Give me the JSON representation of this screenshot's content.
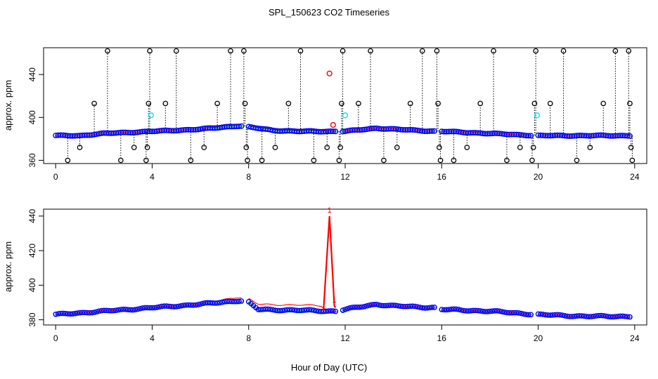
{
  "title": "SPL_150623  CO2 Timeseries",
  "xlabel": "Hour of Day (UTC)",
  "colors": {
    "red": "#ff0000",
    "blue": "#0000ff",
    "green": "#00cc00",
    "cyan": "#00e5ee",
    "black": "#000000"
  },
  "chart_data": [
    {
      "type": "scatter",
      "ylabel": "approx. ppm",
      "xlim": [
        -0.5,
        24.5
      ],
      "ylim": [
        357,
        465
      ],
      "xticks": [
        0,
        4,
        8,
        12,
        16,
        20,
        24
      ],
      "yticks": [
        360,
        400,
        440
      ],
      "tick_labels_x": [
        "0",
        "4",
        "8",
        "12",
        "16",
        "20",
        "24"
      ],
      "tick_labels_y": [
        "360",
        "400",
        "440"
      ],
      "baseline_knots": [
        [
          0,
          383
        ],
        [
          1,
          383
        ],
        [
          2,
          385
        ],
        [
          4,
          387
        ],
        [
          6,
          389
        ],
        [
          7.5,
          392
        ],
        [
          7.8,
          392
        ],
        [
          8,
          391
        ],
        [
          9,
          388
        ],
        [
          10,
          387
        ],
        [
          11.6,
          387
        ],
        [
          12,
          387
        ],
        [
          13.3,
          390
        ],
        [
          14,
          389
        ],
        [
          15.8,
          387
        ],
        [
          16,
          387
        ],
        [
          18,
          385
        ],
        [
          20,
          383
        ],
        [
          22,
          383
        ],
        [
          23.8,
          383
        ]
      ],
      "series_red_offset_knots": [
        [
          6,
          0
        ],
        [
          7.5,
          2
        ],
        [
          8,
          1
        ],
        [
          10,
          1
        ],
        [
          11,
          1
        ],
        [
          11.5,
          0
        ]
      ],
      "missing_ranges": [
        [
          7.8,
          7.95
        ],
        [
          11.7,
          11.85
        ],
        [
          15.8,
          15.9
        ],
        [
          19.8,
          19.95
        ]
      ],
      "black_spikes": [
        {
          "x": 0.5,
          "y": 360
        },
        {
          "x": 1.0,
          "y": 372
        },
        {
          "x": 1.6,
          "y": 413
        },
        {
          "x": 2.15,
          "y": 462
        },
        {
          "x": 2.7,
          "y": 360
        },
        {
          "x": 3.25,
          "y": 372
        },
        {
          "x": 3.75,
          "y": 360
        },
        {
          "x": 3.8,
          "y": 372
        },
        {
          "x": 3.85,
          "y": 413
        },
        {
          "x": 3.9,
          "y": 462
        },
        {
          "x": 4.55,
          "y": 413
        },
        {
          "x": 5.0,
          "y": 462
        },
        {
          "x": 5.6,
          "y": 360
        },
        {
          "x": 6.15,
          "y": 372
        },
        {
          "x": 6.7,
          "y": 413
        },
        {
          "x": 7.25,
          "y": 462
        },
        {
          "x": 7.8,
          "y": 462
        },
        {
          "x": 7.85,
          "y": 413
        },
        {
          "x": 7.9,
          "y": 372
        },
        {
          "x": 7.95,
          "y": 360
        },
        {
          "x": 8.55,
          "y": 360
        },
        {
          "x": 9.1,
          "y": 372
        },
        {
          "x": 9.65,
          "y": 413
        },
        {
          "x": 10.15,
          "y": 462
        },
        {
          "x": 10.7,
          "y": 360
        },
        {
          "x": 11.25,
          "y": 372
        },
        {
          "x": 11.75,
          "y": 360
        },
        {
          "x": 11.8,
          "y": 372
        },
        {
          "x": 11.85,
          "y": 413
        },
        {
          "x": 11.9,
          "y": 462
        },
        {
          "x": 12.55,
          "y": 413
        },
        {
          "x": 13.05,
          "y": 462
        },
        {
          "x": 13.6,
          "y": 360
        },
        {
          "x": 14.15,
          "y": 372
        },
        {
          "x": 14.7,
          "y": 413
        },
        {
          "x": 15.2,
          "y": 462
        },
        {
          "x": 15.8,
          "y": 462
        },
        {
          "x": 15.85,
          "y": 413
        },
        {
          "x": 15.9,
          "y": 372
        },
        {
          "x": 15.95,
          "y": 360
        },
        {
          "x": 16.5,
          "y": 360
        },
        {
          "x": 17.05,
          "y": 372
        },
        {
          "x": 17.6,
          "y": 413
        },
        {
          "x": 18.15,
          "y": 462
        },
        {
          "x": 18.7,
          "y": 360
        },
        {
          "x": 19.25,
          "y": 372
        },
        {
          "x": 19.75,
          "y": 360
        },
        {
          "x": 19.8,
          "y": 372
        },
        {
          "x": 19.85,
          "y": 413
        },
        {
          "x": 19.9,
          "y": 462
        },
        {
          "x": 20.5,
          "y": 413
        },
        {
          "x": 21.05,
          "y": 462
        },
        {
          "x": 21.6,
          "y": 360
        },
        {
          "x": 22.15,
          "y": 372
        },
        {
          "x": 22.7,
          "y": 413
        },
        {
          "x": 23.2,
          "y": 462
        },
        {
          "x": 23.75,
          "y": 462
        },
        {
          "x": 23.8,
          "y": 413
        },
        {
          "x": 23.85,
          "y": 372
        },
        {
          "x": 23.9,
          "y": 360
        }
      ],
      "red_markers": [
        {
          "x": 11.35,
          "y": 441
        },
        {
          "x": 11.5,
          "y": 393
        }
      ],
      "cyan_markers": [
        {
          "x": 3.95,
          "y": 402
        },
        {
          "x": 12.0,
          "y": 402
        },
        {
          "x": 19.95,
          "y": 402
        }
      ]
    },
    {
      "type": "scatter",
      "ylabel": "approx. ppm",
      "xlim": [
        -0.5,
        24.5
      ],
      "ylim": [
        377,
        444
      ],
      "xticks": [
        0,
        4,
        8,
        12,
        16,
        20,
        24
      ],
      "yticks": [
        380,
        400,
        420,
        440
      ],
      "tick_labels_x": [
        "0",
        "4",
        "8",
        "12",
        "16",
        "20",
        "24"
      ],
      "tick_labels_y": [
        "380",
        "400",
        "420",
        "440"
      ],
      "baseline_knots": [
        [
          0,
          383
        ],
        [
          2,
          385
        ],
        [
          4,
          387
        ],
        [
          6,
          389
        ],
        [
          7.5,
          391
        ],
        [
          7.8,
          391
        ],
        [
          8,
          390
        ],
        [
          8.4,
          386
        ],
        [
          11.6,
          385
        ],
        [
          12,
          386
        ],
        [
          13.3,
          389
        ],
        [
          14,
          388
        ],
        [
          15.8,
          387
        ],
        [
          16,
          386
        ],
        [
          18,
          385
        ],
        [
          20,
          383
        ],
        [
          22,
          382
        ],
        [
          23.8,
          382
        ]
      ],
      "series_red_offset_knots": [
        [
          6,
          0
        ],
        [
          6.5,
          1
        ],
        [
          7.5,
          2
        ],
        [
          8,
          2
        ],
        [
          8.4,
          3
        ],
        [
          11.0,
          3
        ],
        [
          11.3,
          0
        ]
      ],
      "red_spike": [
        {
          "x": 11.1,
          "y": 385
        },
        {
          "x": 11.35,
          "y": 440
        },
        {
          "x": 11.55,
          "y": 388
        },
        {
          "x": 11.6,
          "y": 387
        }
      ],
      "spike_labels": [
        {
          "x": 11.35,
          "y": 442,
          "label": "1"
        },
        {
          "x": 11.55,
          "y": 390,
          "label": "1"
        }
      ],
      "missing_ranges": [
        [
          7.8,
          7.95
        ],
        [
          11.7,
          11.85
        ],
        [
          15.8,
          15.9
        ],
        [
          19.8,
          19.95
        ]
      ]
    }
  ]
}
